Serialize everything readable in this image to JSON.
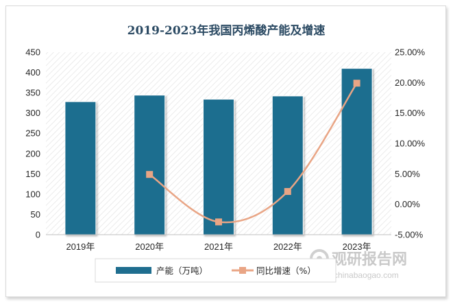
{
  "chart_data": {
    "type": "bar",
    "title": "2019-2023年我国丙烯酸产能及增速",
    "categories": [
      "2019年",
      "2020年",
      "2021年",
      "2022年",
      "2023年"
    ],
    "series": [
      {
        "name": "产能（万吨）",
        "type": "bar",
        "axis": "left",
        "color": "#1f6e8f",
        "values": [
          328,
          344,
          334,
          342,
          410
        ]
      },
      {
        "name": "同比增速（%）",
        "type": "line",
        "axis": "right",
        "color": "#e9a585",
        "values": [
          null,
          4.9,
          -2.9,
          2.1,
          19.9
        ]
      }
    ],
    "y_left": {
      "min": 0,
      "max": 450,
      "step": 50,
      "ticks": [
        "0",
        "50",
        "100",
        "150",
        "200",
        "250",
        "300",
        "350",
        "400",
        "450"
      ]
    },
    "y_right": {
      "min": -5,
      "max": 25,
      "step": 5,
      "ticks": [
        "-5.00%",
        "0.00%",
        "5.00%",
        "10.00%",
        "15.00%",
        "20.00%",
        "25.00%"
      ]
    },
    "legend_position": "bottom",
    "plot_background": "diagonal-hatch"
  },
  "watermark": {
    "text_cn": "观研报告网",
    "text_en": "chinabaogao.com"
  }
}
